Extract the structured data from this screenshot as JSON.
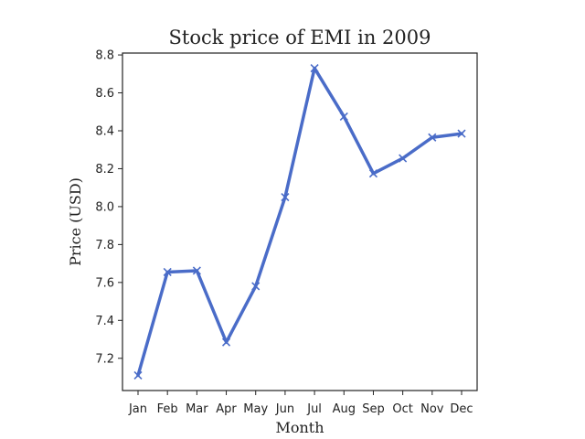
{
  "chart_data": {
    "type": "line",
    "title": "Stock price of EMI in 2009",
    "xlabel": "Month",
    "ylabel": "Price (USD)",
    "categories": [
      "Jan",
      "Feb",
      "Mar",
      "Apr",
      "May",
      "Jun",
      "Jul",
      "Aug",
      "Sep",
      "Oct",
      "Nov",
      "Dec"
    ],
    "series": [
      {
        "values": [
          7.11,
          7.655,
          7.662,
          7.285,
          7.58,
          8.05,
          8.73,
          8.475,
          8.175,
          8.255,
          8.365,
          8.385
        ],
        "color": "#4a6cc8",
        "marker": "x"
      }
    ],
    "yticks": [
      7.2,
      7.4,
      7.6,
      7.8,
      8.0,
      8.2,
      8.4,
      8.6,
      8.8
    ],
    "ytick_labels": [
      "7.2",
      "7.4",
      "7.6",
      "7.8",
      "8.0",
      "8.2",
      "8.4",
      "8.6",
      "8.8"
    ],
    "ylim": [
      7.03,
      8.81
    ],
    "grid": false,
    "legend": "none"
  }
}
